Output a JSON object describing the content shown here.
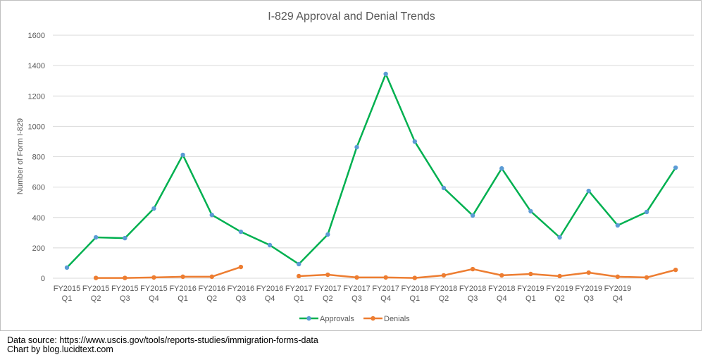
{
  "chart_data": {
    "type": "line",
    "title": "I-829 Approval and Denial Trends",
    "xlabel": "",
    "ylabel": "Number of Form I-829",
    "ylim": [
      0,
      1600
    ],
    "yticks": [
      0,
      200,
      400,
      600,
      800,
      1000,
      1200,
      1400,
      1600
    ],
    "grid": true,
    "legend_position": "bottom",
    "categories": [
      [
        "FY2015",
        "Q1"
      ],
      [
        "FY2015",
        "Q2"
      ],
      [
        "FY2015",
        "Q3"
      ],
      [
        "FY2015",
        "Q4"
      ],
      [
        "FY2016",
        "Q1"
      ],
      [
        "FY2016",
        "Q2"
      ],
      [
        "FY2016",
        "Q3"
      ],
      [
        "FY2016",
        "Q4"
      ],
      [
        "FY2017",
        "Q1"
      ],
      [
        "FY2017",
        "Q2"
      ],
      [
        "FY2017",
        "Q3"
      ],
      [
        "FY2017",
        "Q4"
      ],
      [
        "FY2018",
        "Q1"
      ],
      [
        "FY2018",
        "Q2"
      ],
      [
        "FY2018",
        "Q3"
      ],
      [
        "FY2018",
        "Q4"
      ],
      [
        "FY2019",
        "Q1"
      ],
      [
        "FY2019",
        "Q2"
      ],
      [
        "FY2019",
        "Q3"
      ],
      [
        "FY2019",
        "Q4"
      ],
      [
        "",
        ""
      ],
      [
        "",
        ""
      ]
    ],
    "series": [
      {
        "name": "Approvals",
        "color": "#00b050",
        "marker_color": "#5b9bd5",
        "values": [
          70,
          269,
          264,
          459,
          812,
          417,
          306,
          218,
          93,
          288,
          863,
          1345,
          900,
          594,
          413,
          723,
          441,
          269,
          575,
          348,
          436,
          728
        ]
      },
      {
        "name": "Denials",
        "color": "#ed7d31",
        "marker_color": "#ed7d31",
        "values": [
          null,
          2,
          2,
          5,
          10,
          10,
          74,
          null,
          14,
          23,
          5,
          5,
          2,
          19,
          60,
          19,
          28,
          14,
          37,
          10,
          5,
          55
        ]
      }
    ]
  },
  "footer": {
    "source": "Data source: https://www.uscis.gov/tools/reports-studies/immigration-forms-data",
    "credit": "Chart by blog.lucidtext.com"
  }
}
